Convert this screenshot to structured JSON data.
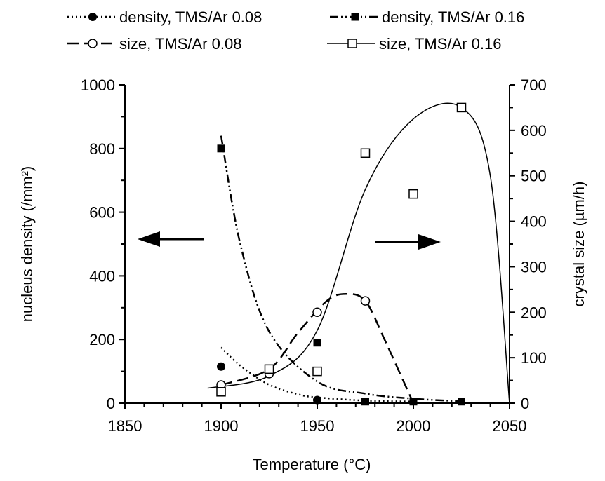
{
  "chart_data": {
    "type": "scatter",
    "title": "",
    "xlabel": "Temperature (°C)",
    "ylabel_left": "nucleus density (/mm²)",
    "ylabel_right": "crystal size (µm/h)",
    "xlim": [
      1850,
      2050
    ],
    "ylim_left": [
      0,
      1000
    ],
    "ylim_right": [
      0,
      700
    ],
    "x_ticks": [
      "1850",
      "1900",
      "1950",
      "2000",
      "2050"
    ],
    "y_left_ticks": [
      "0",
      "200",
      "400",
      "600",
      "800",
      "1000"
    ],
    "y_right_ticks": [
      "0",
      "100",
      "200",
      "300",
      "400",
      "500",
      "600",
      "700"
    ],
    "grid": false,
    "legend_position": "top",
    "series": [
      {
        "name": "density, TMS/Ar 0.08",
        "axis": "left",
        "marker": "filled-circle",
        "line": "dotted",
        "x": [
          1900,
          1950
        ],
        "y": [
          115,
          10
        ],
        "fit_x": [
          1900,
          1910,
          1925,
          1940,
          1950,
          1975,
          2000
        ],
        "fit_y": [
          175,
          118,
          58,
          28,
          18,
          8,
          5
        ]
      },
      {
        "name": "density, TMS/Ar 0.16",
        "axis": "left",
        "marker": "filled-square",
        "line": "dash-dot-dot",
        "x": [
          1900,
          1950,
          1975,
          2000,
          2025
        ],
        "y": [
          800,
          190,
          5,
          5,
          5
        ],
        "fit_x": [
          1900,
          1910,
          1925,
          1950,
          1975,
          2000,
          2025
        ],
        "fit_y": [
          840,
          500,
          225,
          68,
          30,
          14,
          6
        ]
      },
      {
        "name": "size, TMS/Ar 0.08",
        "axis": "right",
        "marker": "open-circle",
        "line": "dashed",
        "x": [
          1900,
          1925,
          1950,
          1975
        ],
        "y": [
          40,
          65,
          200,
          225
        ],
        "fit_x": [
          1900,
          1925,
          1940,
          1955,
          1965,
          1975,
          1985,
          2000
        ],
        "fit_y": [
          40,
          75,
          155,
          225,
          240,
          225,
          140,
          0
        ]
      },
      {
        "name": "size, TMS/Ar 0.16",
        "axis": "right",
        "marker": "open-square",
        "line": "solid",
        "x": [
          1900,
          1925,
          1950,
          1975,
          2000,
          2025
        ],
        "y": [
          25,
          75,
          70,
          550,
          460,
          650
        ],
        "fit_x": [
          1893,
          1925,
          1950,
          1975,
          2000,
          2025,
          2040,
          2050
        ],
        "fit_y": [
          33,
          60,
          160,
          470,
          625,
          650,
          500,
          0
        ]
      }
    ]
  }
}
